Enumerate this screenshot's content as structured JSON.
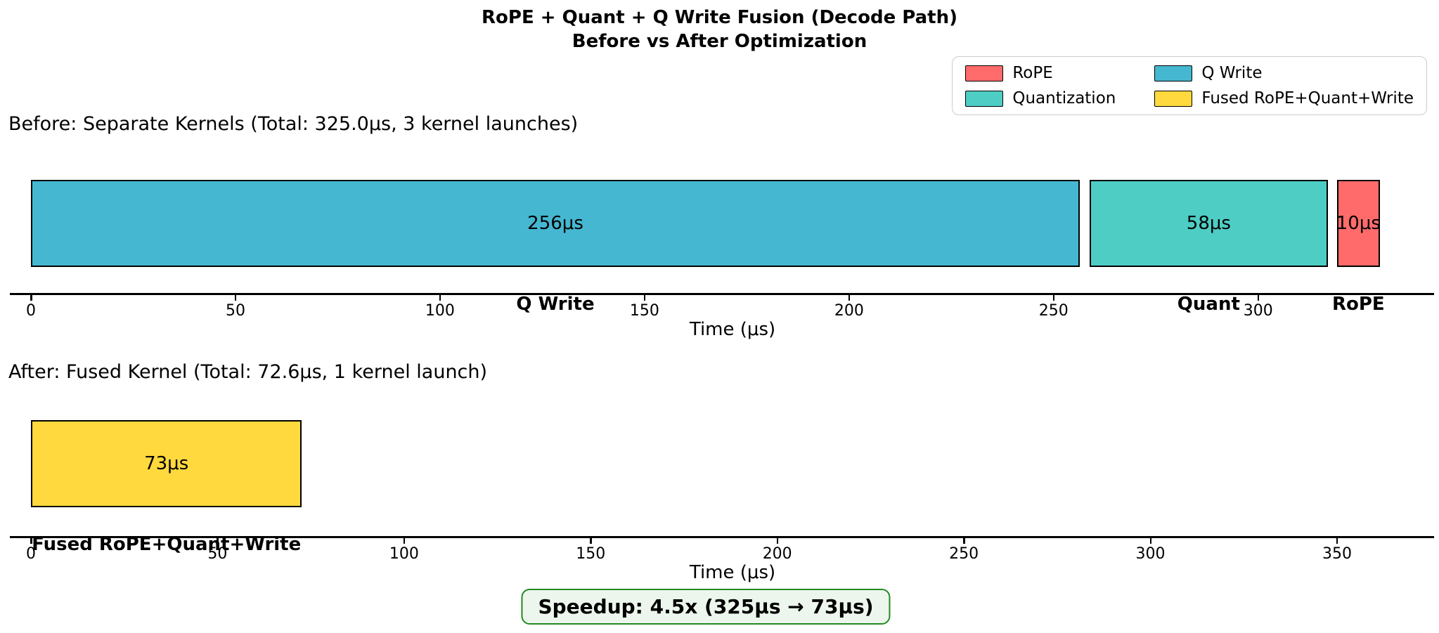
{
  "header": {
    "title_line1": "RoPE + Quant + Q Write Fusion (Decode Path)",
    "title_line2": "Before vs After Optimization"
  },
  "legend": {
    "items": [
      {
        "label": "RoPE",
        "color": "#FF6B6B"
      },
      {
        "label": "Quantization",
        "color": "#4ECDC4"
      },
      {
        "label": "Q Write",
        "color": "#45B7D1"
      },
      {
        "label": "Fused RoPE+Quant+Write",
        "color": "#FFD93D"
      }
    ]
  },
  "chart_data": [
    {
      "type": "bar",
      "orientation": "horizontal-timeline",
      "title": "Before: Separate Kernels (Total: 325.0μs, 3 kernel launches)",
      "xlabel": "Time (μs)",
      "xlim": [
        0,
        343
      ],
      "ticks": [
        0,
        50,
        100,
        150,
        200,
        250,
        300
      ],
      "total_us": 325.0,
      "kernel_launches": 3,
      "segments": [
        {
          "name": "Q Write",
          "start": 0,
          "duration": 256.4,
          "label": "256μs",
          "color": "#45B7D1"
        },
        {
          "name": "Quant",
          "start": 258.8,
          "duration": 58.2,
          "label": "58μs",
          "color": "#4ECDC4"
        },
        {
          "name": "RoPE",
          "start": 319.3,
          "duration": 10.4,
          "label": "10μs",
          "color": "#FF6B6B"
        }
      ]
    },
    {
      "type": "bar",
      "orientation": "horizontal-timeline",
      "title": "After: Fused Kernel (Total: 72.6μs, 1 kernel launch)",
      "xlabel": "Time (μs)",
      "xlim": [
        0,
        376
      ],
      "ticks": [
        0,
        50,
        100,
        150,
        200,
        250,
        300,
        350
      ],
      "total_us": 72.6,
      "kernel_launches": 1,
      "segments": [
        {
          "name": "Fused RoPE+Quant+Write",
          "start": 0,
          "duration": 72.6,
          "label": "73μs",
          "color": "#FFD93D"
        }
      ]
    }
  ],
  "footer": {
    "speedup_label": "Speedup: 4.5x (325μs → 73μs)",
    "border_color": "#228B22",
    "bg_color": "#EDF6ED"
  }
}
